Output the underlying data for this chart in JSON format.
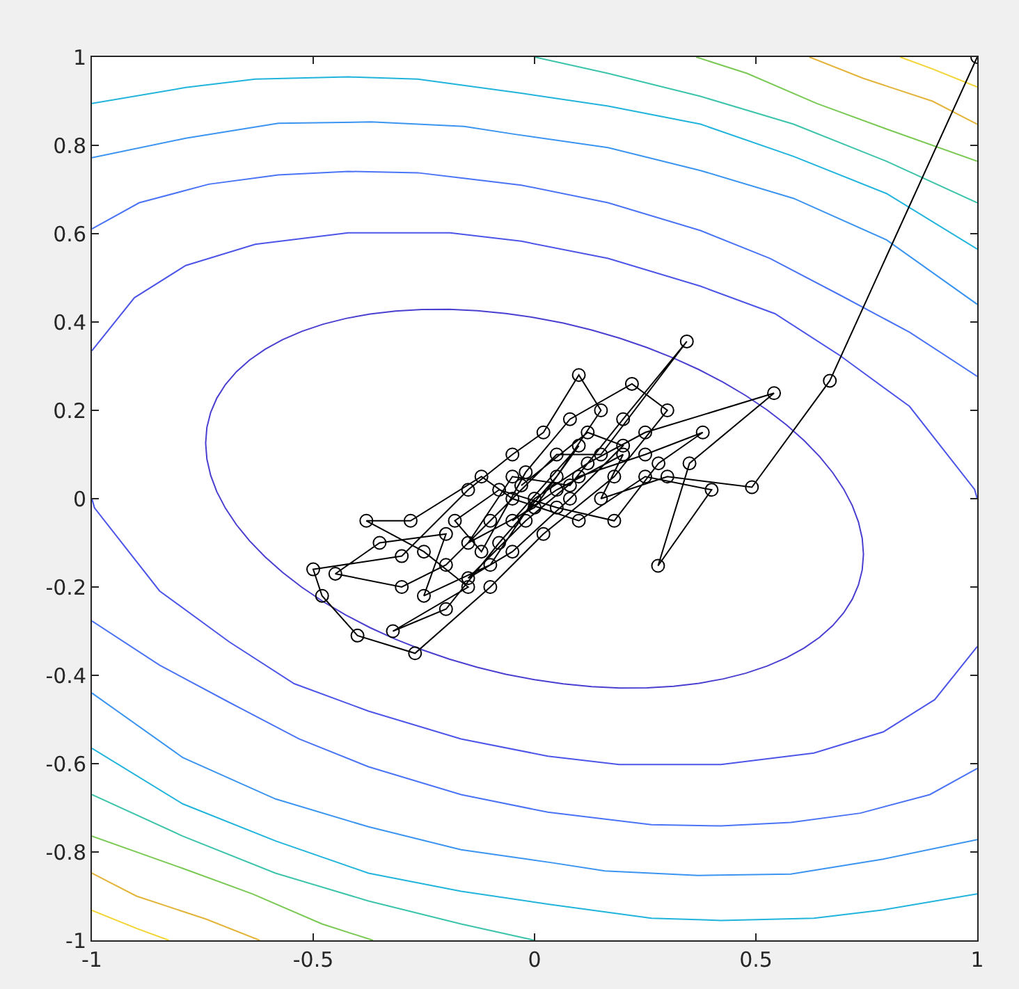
{
  "chart_data": {
    "type": "line",
    "xlim": [
      -1,
      1
    ],
    "ylim": [
      -1,
      1
    ],
    "xticks": [
      -1,
      -0.5,
      0,
      0.5,
      1
    ],
    "yticks": [
      -1,
      -0.8,
      -0.6,
      -0.4,
      -0.2,
      0,
      0.2,
      0.4,
      0.6,
      0.8,
      1
    ],
    "series": [
      {
        "color": "#4d55e8",
        "x": [
          -1,
          -0.904,
          -0.788,
          -0.631,
          -0.421,
          -0.191,
          -0.03,
          0.166,
          0.375,
          0.543,
          0.69,
          0.847,
          0.994,
          1
        ],
        "values": [
          0.335,
          0.455,
          0.528,
          0.576,
          0.602,
          0.602,
          0.583,
          0.544,
          0.481,
          0.419,
          0.324,
          0.209,
          0.021,
          0.0
        ]
      },
      {
        "color": "#4d55e8",
        "x": [
          1,
          0.904,
          0.788,
          0.631,
          0.421,
          0.191,
          0.03,
          -0.166,
          -0.375,
          -0.543,
          -0.69,
          -0.847,
          -0.994,
          -1
        ],
        "values": [
          -0.335,
          -0.455,
          -0.528,
          -0.576,
          -0.602,
          -0.602,
          -0.583,
          -0.544,
          -0.481,
          -0.419,
          -0.324,
          -0.209,
          -0.021,
          0.0
        ]
      },
      {
        "color": "#4a74f5",
        "x": [
          -1,
          -0.893,
          -0.736,
          -0.579,
          -0.421,
          -0.264,
          -0.03,
          0.166,
          0.375,
          0.532,
          0.69,
          0.847,
          1
        ],
        "values": [
          0.611,
          0.67,
          0.712,
          0.733,
          0.741,
          0.738,
          0.71,
          0.67,
          0.607,
          0.544,
          0.461,
          0.377,
          0.277
        ]
      },
      {
        "color": "#4a74f5",
        "x": [
          1,
          0.893,
          0.736,
          0.579,
          0.421,
          0.264,
          0.03,
          -0.166,
          -0.375,
          -0.532,
          -0.69,
          -0.847,
          -1
        ],
        "values": [
          -0.611,
          -0.67,
          -0.712,
          -0.733,
          -0.741,
          -0.738,
          -0.71,
          -0.67,
          -0.607,
          -0.544,
          -0.461,
          -0.377,
          -0.277
        ]
      },
      {
        "color": "#3a94f0",
        "x": [
          -1,
          -0.788,
          -0.579,
          -0.369,
          -0.159,
          -0.044,
          0.166,
          0.375,
          0.585,
          0.795,
          1
        ],
        "values": [
          0.772,
          0.816,
          0.85,
          0.853,
          0.843,
          0.825,
          0.795,
          0.743,
          0.68,
          0.586,
          0.44
        ]
      },
      {
        "color": "#3a94f0",
        "x": [
          1,
          0.788,
          0.579,
          0.369,
          0.159,
          0.044,
          -0.166,
          -0.375,
          -0.585,
          -0.795,
          -1
        ],
        "values": [
          -0.772,
          -0.816,
          -0.85,
          -0.853,
          -0.843,
          -0.825,
          -0.795,
          -0.743,
          -0.68,
          -0.586,
          -0.44
        ]
      },
      {
        "color": "#20b4dc",
        "x": [
          -1,
          -0.788,
          -0.631,
          -0.421,
          -0.264,
          -0.03,
          0.166,
          0.375,
          0.585,
          0.795,
          1
        ],
        "values": [
          0.895,
          0.931,
          0.95,
          0.955,
          0.95,
          0.918,
          0.889,
          0.848,
          0.775,
          0.691,
          0.565
        ]
      },
      {
        "color": "#20b4dc",
        "x": [
          1,
          0.788,
          0.631,
          0.421,
          0.264,
          0.03,
          -0.166,
          -0.375,
          -0.585,
          -0.795,
          -1
        ],
        "values": [
          -0.895,
          -0.931,
          -0.95,
          -0.955,
          -0.95,
          -0.918,
          -0.889,
          -0.848,
          -0.775,
          -0.691,
          -0.565
        ]
      },
      {
        "color": "#3cc4aa",
        "x": [
          0,
          0.166,
          0.375,
          0.585,
          0.795,
          1
        ],
        "values": [
          1,
          0.963,
          0.911,
          0.848,
          0.764,
          0.67
        ]
      },
      {
        "color": "#3cc4aa",
        "x": [
          0,
          -0.166,
          -0.375,
          -0.585,
          -0.795,
          -1
        ],
        "values": [
          -1,
          -0.963,
          -0.911,
          -0.848,
          -0.764,
          -0.67
        ]
      },
      {
        "color": "#7ac955",
        "x": [
          0.365,
          0.48,
          0.637,
          0.795,
          1
        ],
        "values": [
          1,
          0.963,
          0.895,
          0.837,
          0.764
        ]
      },
      {
        "color": "#7ac955",
        "x": [
          -0.365,
          -0.48,
          -0.637,
          -0.795,
          -1
        ],
        "values": [
          -1,
          -0.963,
          -0.895,
          -0.837,
          -0.764
        ]
      },
      {
        "color": "#e4b43a",
        "x": [
          0.621,
          0.742,
          0.899,
          1
        ],
        "values": [
          1,
          0.952,
          0.9,
          0.848
        ]
      },
      {
        "color": "#e4b43a",
        "x": [
          -0.621,
          -0.742,
          -0.899,
          -1
        ],
        "values": [
          -1,
          -0.952,
          -0.9,
          -0.848
        ]
      },
      {
        "color": "#f4d433",
        "x": [
          0.826,
          0.899,
          1
        ],
        "values": [
          1,
          0.973,
          0.932
        ]
      },
      {
        "color": "#f4d433",
        "x": [
          -0.826,
          -0.899,
          -1
        ],
        "values": [
          -1,
          -0.973,
          -0.932
        ]
      },
      {
        "color": "#000000",
        "marker": "circle",
        "x": [
          1,
          0.667,
          0.491,
          0.3,
          0.15,
          0.2,
          0.05,
          -0.05,
          0.1,
          0.0,
          -0.15,
          -0.05,
          0.08,
          0.2,
          0.344,
          0.15,
          0.05,
          -0.1,
          -0.2,
          -0.3,
          -0.45,
          -0.35,
          -0.2,
          -0.25,
          -0.1,
          0.0,
          0.12,
          0.25,
          0.541,
          0.35,
          0.279,
          0.4,
          0.25,
          0.1,
          -0.05,
          -0.12,
          -0.28,
          -0.38,
          -0.25,
          -0.15,
          -0.32,
          -0.2,
          -0.08,
          0.05,
          0.15,
          0.1,
          0.02,
          -0.05,
          -0.15,
          -0.3,
          -0.5,
          -0.48,
          -0.4,
          -0.27,
          -0.1,
          0.02,
          0.18,
          0.3,
          0.22,
          0.08,
          -0.02,
          -0.12,
          -0.18,
          -0.08,
          0.05,
          0.18,
          0.28,
          0.38,
          0.25,
          0.1,
          -0.02,
          -0.15,
          -0.05,
          0.08,
          0.2,
          0.12,
          -0.03
        ],
        "values": [
          1,
          0.267,
          0.026,
          0.05,
          0.0,
          0.1,
          0.02,
          -0.05,
          0.12,
          -0.02,
          -0.1,
          0.05,
          0.03,
          0.18,
          0.356,
          0.1,
          0.1,
          -0.05,
          -0.15,
          -0.2,
          -0.17,
          -0.1,
          -0.08,
          -0.22,
          -0.15,
          0.0,
          0.08,
          0.15,
          0.239,
          0.08,
          -0.152,
          0.02,
          0.05,
          -0.05,
          0.0,
          0.05,
          -0.05,
          -0.05,
          -0.12,
          -0.2,
          -0.3,
          -0.25,
          -0.1,
          0.05,
          0.2,
          0.28,
          0.15,
          0.1,
          0.02,
          -0.13,
          -0.16,
          -0.22,
          -0.31,
          -0.35,
          -0.2,
          -0.08,
          0.05,
          0.2,
          0.26,
          0.18,
          0.06,
          -0.12,
          -0.05,
          0.02,
          -0.02,
          -0.05,
          0.08,
          0.15,
          0.1,
          0.05,
          -0.05,
          -0.18,
          -0.12,
          0.0,
          0.12,
          0.15,
          0.03
        ]
      }
    ]
  }
}
